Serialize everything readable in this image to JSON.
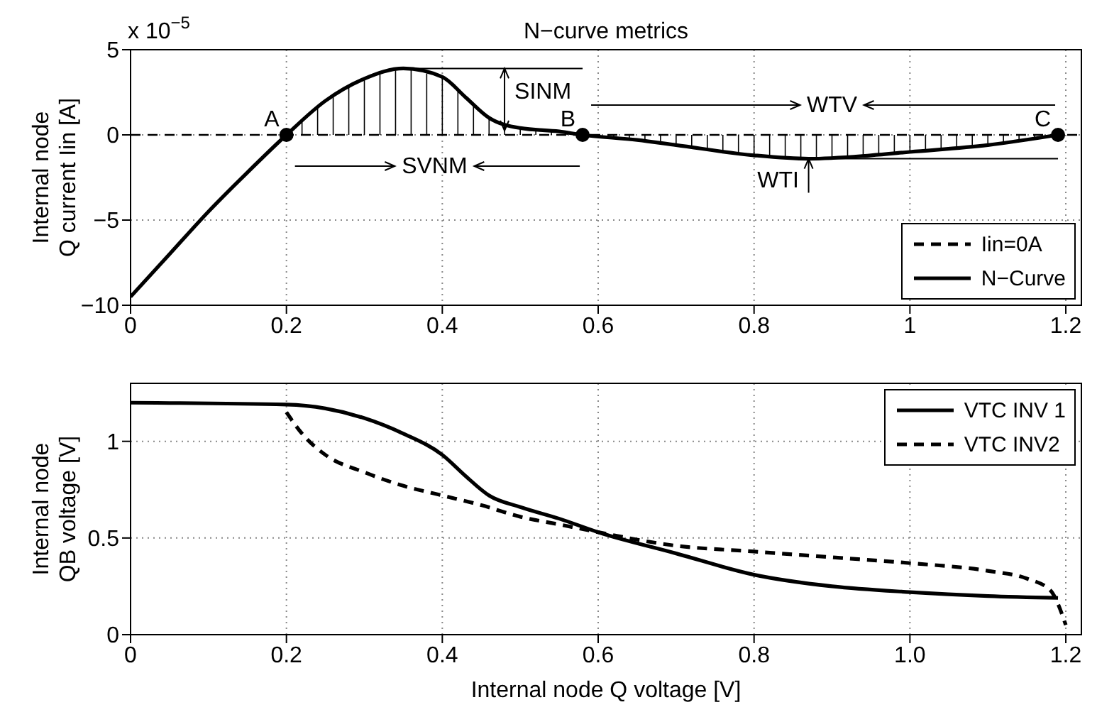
{
  "chart_data": [
    {
      "type": "line",
      "title": "N−curve metrics",
      "ylabel": "Internal node\nQ current Iin [A]",
      "xlim": [
        0,
        1.22
      ],
      "xticks": [
        0,
        0.2,
        0.4,
        0.6,
        0.8,
        1,
        1.2
      ],
      "ylim": [
        -10,
        5
      ],
      "yticks": [
        {
          "value": -10,
          "label": "−10"
        },
        {
          "value": -5,
          "label": "−5"
        },
        0,
        5
      ],
      "grid": true,
      "legend": "bottom right",
      "annotations": [
        "x 10$^{−5}$",
        {
          "text": "A",
          "x": 0.2,
          "y": 0
        },
        {
          "text": "B",
          "x": 0.58,
          "y": 0
        },
        {
          "text": "C",
          "x": 1.19,
          "y": 0
        },
        {
          "text": "SINM",
          "x": 0.35,
          "y": 3.9
        },
        {
          "text": "SVNM",
          "x": 0.39,
          "y": 0
        },
        {
          "text": "WTV",
          "x": 0.9,
          "y": 0
        },
        {
          "text": "WTI",
          "x": 0.87,
          "y": -1.4
        }
      ],
      "series": [
        {
          "name": "Iin=0A",
          "color": "#000000",
          "line_style": "dashed",
          "x": [
            0,
            1.22
          ],
          "values": [
            0,
            0
          ]
        },
        {
          "name": "N−Curve",
          "color": "#000000",
          "line_style": "solid",
          "x": [
            0,
            0.05,
            0.1,
            0.15,
            0.2,
            0.25,
            0.3,
            0.35,
            0.4,
            0.43,
            0.46,
            0.5,
            0.55,
            0.58,
            0.65,
            0.7,
            0.8,
            0.87,
            0.95,
            1,
            1.1,
            1.19
          ],
          "values": [
            -9.5,
            -7,
            -4.5,
            -2.2,
            0,
            2,
            3.3,
            3.9,
            3.4,
            2.2,
            1,
            0.4,
            0.2,
            0,
            -0.3,
            -0.6,
            -1.2,
            -1.4,
            -1.2,
            -1,
            -0.6,
            0
          ]
        },
        {
          "type": "scatter",
          "color": "#000000",
          "marker": "circle",
          "x": [
            0.2,
            0.58,
            1.19
          ],
          "values": [
            0,
            0,
            0
          ]
        }
      ]
    },
    {
      "type": "line",
      "xlabel": "Internal node Q voltage [V]",
      "ylabel": "Internal node\nQB voltage [V]",
      "xlim": [
        0,
        1.22
      ],
      "xticks": [
        0,
        0.2,
        0.4,
        0.6,
        0.8,
        {
          "value": 1,
          "label": "1.0"
        },
        1.2
      ],
      "ylim": [
        0,
        1.3
      ],
      "yticks": [
        0,
        0.5,
        1
      ],
      "grid": true,
      "legend": "top right",
      "series": [
        {
          "name": "VTC INV 1",
          "color": "#000000",
          "line_style": "solid",
          "x": [
            0,
            0.2,
            0.25,
            0.3,
            0.35,
            0.4,
            0.43,
            0.46,
            0.5,
            0.55,
            0.6,
            0.7,
            0.8,
            0.9,
            1,
            1.1,
            1.19
          ],
          "values": [
            1.2,
            1.19,
            1.17,
            1.12,
            1.04,
            0.93,
            0.82,
            0.72,
            0.66,
            0.6,
            0.53,
            0.42,
            0.31,
            0.25,
            0.22,
            0.2,
            0.19
          ]
        },
        {
          "name": "VTC INV2",
          "color": "#000000",
          "line_style": "dashed",
          "x": [
            0.2,
            0.22,
            0.25,
            0.3,
            0.35,
            0.4,
            0.45,
            0.5,
            0.55,
            0.6,
            0.7,
            0.8,
            0.9,
            1,
            1.1,
            1.15,
            1.18,
            1.2
          ],
          "values": [
            1.15,
            1.04,
            0.93,
            0.84,
            0.77,
            0.72,
            0.67,
            0.61,
            0.57,
            0.53,
            0.46,
            0.43,
            0.4,
            0.37,
            0.33,
            0.29,
            0.23,
            0.05
          ]
        }
      ]
    }
  ]
}
